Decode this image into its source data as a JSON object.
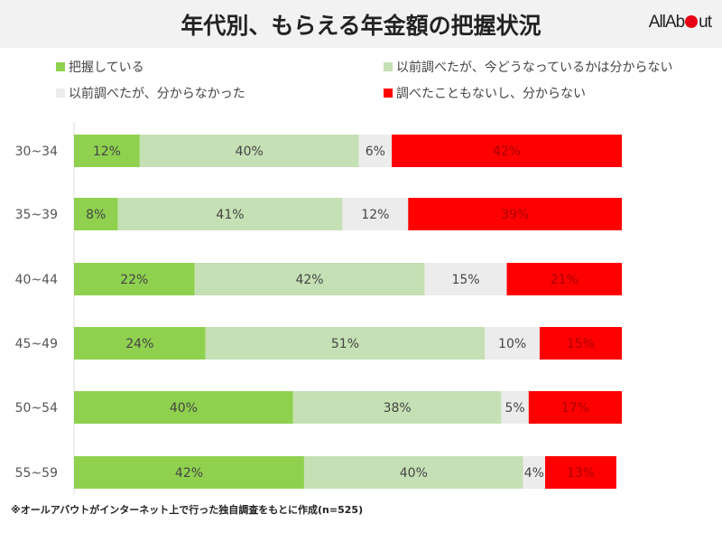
{
  "title": "年代別、もらえる年金額の把握状況",
  "logo": {
    "left": "AllAb",
    "right": "ut"
  },
  "note": "※オールアバウトがインターネット上で行った独自調査をもとに作成(n=525)",
  "chart_data": {
    "type": "bar",
    "orientation": "horizontal",
    "stacked": true,
    "categories": [
      "30~34",
      "35~39",
      "40~44",
      "45~49",
      "50~54",
      "55~59"
    ],
    "series": [
      {
        "name": "把握している",
        "color": "#8fd14f",
        "values": [
          12,
          8,
          22,
          24,
          40,
          42
        ]
      },
      {
        "name": "以前調べたが、今どうなっているかは分からない",
        "color": "#c5e0b4",
        "values": [
          40,
          41,
          42,
          51,
          38,
          40
        ]
      },
      {
        "name": "以前調べたが、分からなかった",
        "color": "#ececec",
        "values": [
          6,
          12,
          15,
          10,
          5,
          4
        ]
      },
      {
        "name": "調べたこともないし、分からない",
        "color": "#ff0000",
        "values": [
          42,
          39,
          21,
          15,
          17,
          13
        ]
      }
    ],
    "xlim": [
      0,
      100
    ],
    "legend": "top",
    "grid": false
  }
}
